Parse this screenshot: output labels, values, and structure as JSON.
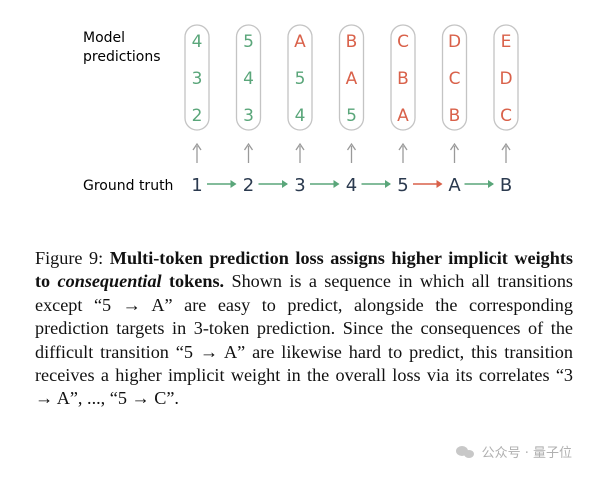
{
  "labels": {
    "model_predictions_1": "Model",
    "model_predictions_2": "predictions",
    "ground_truth": "Ground truth"
  },
  "prediction_columns": [
    [
      "4",
      "3",
      "2"
    ],
    [
      "5",
      "4",
      "3"
    ],
    [
      "A",
      "5",
      "4"
    ],
    [
      "B",
      "A",
      "5"
    ],
    [
      "C",
      "B",
      "A"
    ],
    [
      "D",
      "C",
      "B"
    ],
    [
      "E",
      "D",
      "C"
    ]
  ],
  "ground_truth_tokens": [
    "1",
    "2",
    "3",
    "4",
    "5",
    "A",
    "B"
  ],
  "hard_transition_index": 4,
  "colors": {
    "green": "#5aa67a",
    "red": "#d9614a",
    "box": "#c4c4c4",
    "arrow": "#9a9a9a",
    "text": "#2b3a4f"
  },
  "caption": {
    "figure_label": "Figure 9:",
    "bold_1": "Multi-token prediction loss assigns higher implicit weights to",
    "bold_italic": "consequential",
    "bold_2": "tokens.",
    "text": "Shown is a sequence in which all transitions except “5 → A” are easy to predict, alongside the corresponding prediction targets in 3-token prediction. Since the consequences of the difficult transition “5 → A” are likewise hard to predict, this transition receives a higher implicit weight in the overall loss via its correlates “3 → A”, ..., “5 → C”."
  },
  "watermark": "公众号 · 量子位"
}
